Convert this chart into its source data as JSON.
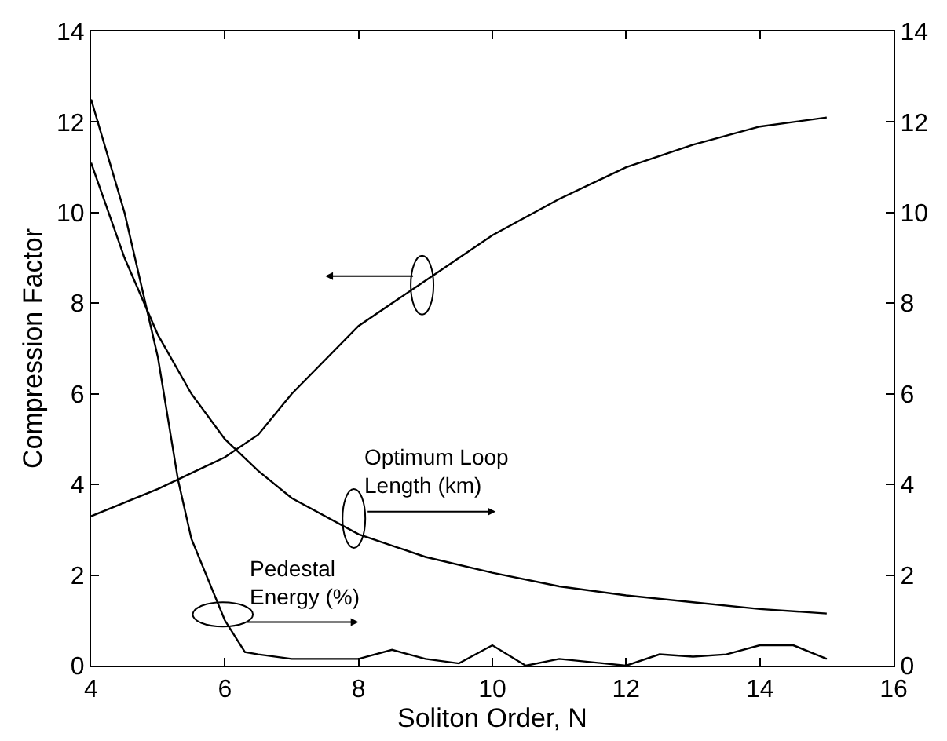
{
  "chart_data": {
    "type": "line",
    "xlabel": "Soliton Order, N",
    "ylabel": "Compression Factor",
    "xlim": [
      4,
      16
    ],
    "xticks": [
      4,
      6,
      8,
      10,
      12,
      14,
      16
    ],
    "ylim": [
      0,
      14
    ],
    "yticks": [
      0,
      2,
      4,
      6,
      8,
      10,
      12,
      14
    ],
    "y2lim": [
      0,
      14
    ],
    "y2ticks": [
      0,
      2,
      4,
      6,
      8,
      10,
      12,
      14
    ],
    "marker": "none",
    "line_style": "solid",
    "series": [
      {
        "color": "#000000",
        "x": [
          4,
          5,
          6,
          6.5,
          7,
          8,
          9,
          10,
          11,
          12,
          13,
          14,
          15
        ],
        "values": [
          3.3,
          3.9,
          4.6,
          5.1,
          6.0,
          7.5,
          8.5,
          9.5,
          10.3,
          11.0,
          11.5,
          11.9,
          12.1
        ]
      },
      {
        "color": "#000000",
        "axis": "y2",
        "x": [
          4,
          4.5,
          5,
          5.5,
          6,
          6.5,
          7,
          8,
          9,
          10,
          11,
          12,
          13,
          14,
          15
        ],
        "values": [
          11.1,
          9.0,
          7.3,
          6.0,
          5.0,
          4.3,
          3.7,
          2.9,
          2.4,
          2.05,
          1.75,
          1.55,
          1.4,
          1.25,
          1.15
        ]
      },
      {
        "color": "#000000",
        "axis": "y2",
        "x": [
          4,
          4.5,
          5,
          5.3,
          5.5,
          6,
          6.3,
          6.5,
          7,
          8,
          8.5,
          9,
          9.5,
          10,
          10.5,
          11,
          12,
          12.5,
          13,
          13.5,
          14,
          14.5,
          15
        ],
        "values": [
          12.5,
          10.0,
          6.8,
          4.1,
          2.8,
          1.0,
          0.3,
          0.25,
          0.15,
          0.15,
          0.35,
          0.15,
          0.05,
          0.45,
          0.0,
          0.15,
          0.0,
          0.25,
          0.2,
          0.25,
          0.45,
          0.45,
          0.15
        ]
      }
    ],
    "annotations": [
      "Optimum Loop\nLength (km)",
      "Pedestal\nEnergy (%)"
    ]
  }
}
